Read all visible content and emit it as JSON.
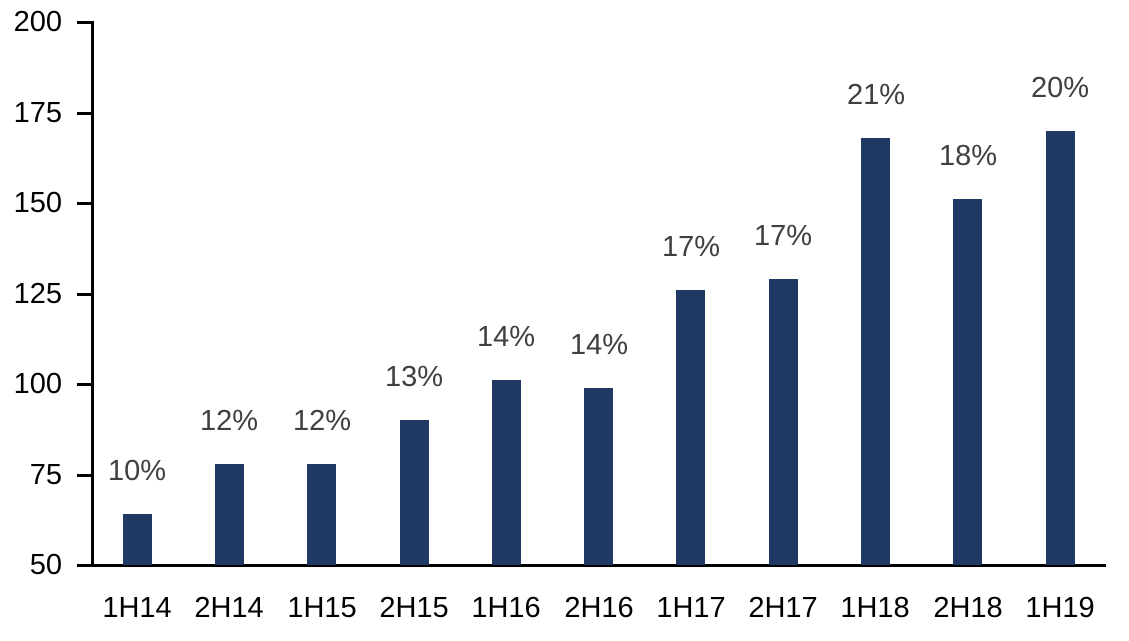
{
  "chart_data": {
    "type": "bar",
    "title": "",
    "xlabel": "",
    "ylabel": "",
    "categories": [
      "1H14",
      "2H14",
      "1H15",
      "2H15",
      "1H16",
      "2H16",
      "1H17",
      "2H17",
      "1H18",
      "2H18",
      "1H19"
    ],
    "values": [
      64,
      78,
      78,
      90,
      101,
      99,
      126,
      129,
      168,
      151,
      170
    ],
    "bar_labels": [
      "10%",
      "12%",
      "12%",
      "13%",
      "14%",
      "14%",
      "17%",
      "17%",
      "21%",
      "18%",
      "20%"
    ],
    "ylim": [
      50,
      200
    ],
    "yticks": [
      50,
      75,
      100,
      125,
      150,
      175,
      200
    ],
    "grid": false,
    "legend_position": "none",
    "colors": {
      "bar": "#1F3864",
      "bar_label": "#404040",
      "axis": "#000000",
      "axis_label": "#000000",
      "background": "#FFFFFF"
    }
  }
}
